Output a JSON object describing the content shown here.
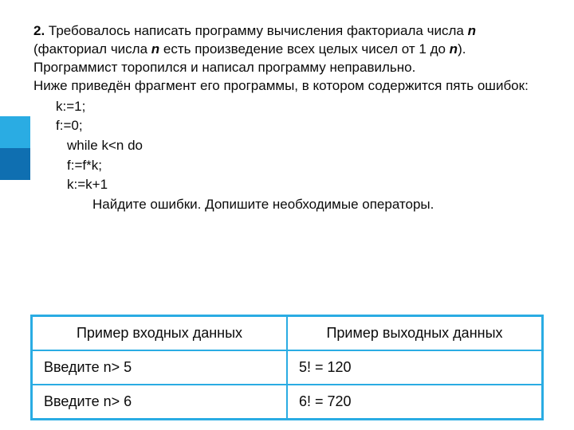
{
  "sideAccent": {
    "topColor": "#2aace3",
    "botColor": "#0f6fb1"
  },
  "problem": {
    "number": "2.",
    "introPart1": " Требовалось написать программу вычисления факториала числа ",
    "var_n_1": "n",
    "introPart2": " (факториал числа ",
    "var_n_2": "n",
    "introPart3": " есть произведение всех целых чисел от 1 до ",
    "var_n_3": "n",
    "introPart4": ").",
    "line2": "Программист торопился и написал программу неправильно.",
    "line3": "Ниже приведён фрагмент его программы, в котором содержится пять ошибок:",
    "code": {
      "l1": "k:=1;",
      "l2": "f:=0;",
      "l3": "while k<n do",
      "l4": "f:=f*k;",
      "l5": "k:=k+1"
    },
    "task": "Найдите ошибки. Допишите необходимые операторы."
  },
  "table": {
    "headers": {
      "input": "Пример входных данных",
      "output": "Пример выходных данных"
    },
    "rows": [
      {
        "in": "Введите n> 5",
        "out": "5! = 120"
      },
      {
        "in": "Введите n> 6",
        "out": "6! = 720"
      }
    ],
    "borderColor": "#2aace3",
    "fontSize": 18
  }
}
